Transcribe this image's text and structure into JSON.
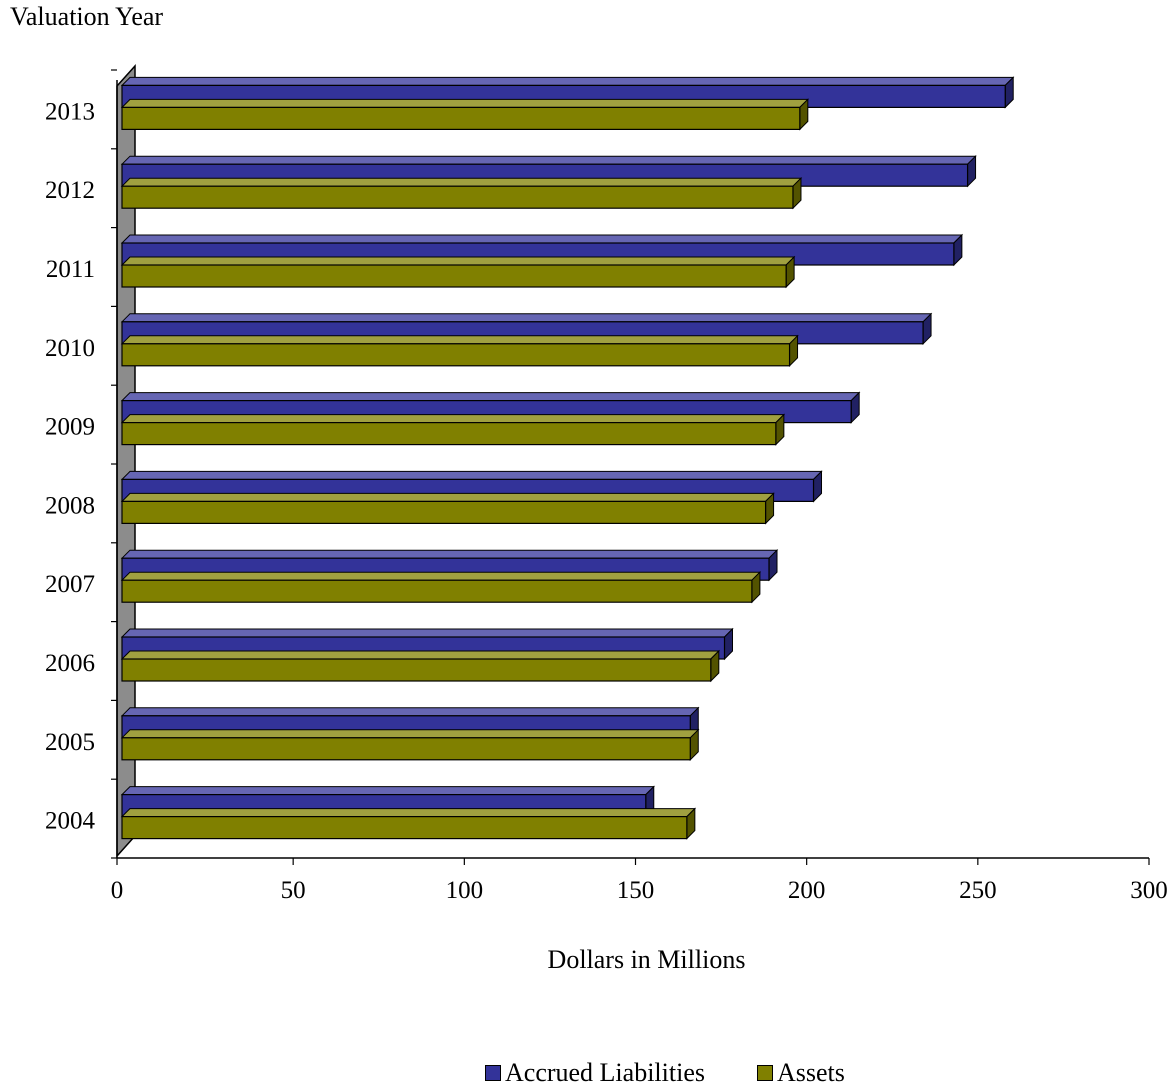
{
  "chart_data": {
    "type": "bar",
    "orientation": "horizontal",
    "style": "3d",
    "ylabel": "Valuation Year",
    "xlabel": "Dollars in Millions",
    "categories": [
      "2004",
      "2005",
      "2006",
      "2007",
      "2008",
      "2009",
      "2010",
      "2011",
      "2012",
      "2013"
    ],
    "series": [
      {
        "name": "Accrued Liabilities",
        "color": "#333399",
        "values": [
          153,
          166,
          176,
          189,
          202,
          213,
          234,
          243,
          247,
          258
        ]
      },
      {
        "name": "Assets",
        "color": "#808000",
        "values": [
          165,
          166,
          172,
          184,
          188,
          191,
          195,
          194,
          196,
          198
        ]
      }
    ],
    "xlim": [
      0,
      300
    ],
    "xticks": [
      "0",
      "50",
      "100",
      "150",
      "200",
      "250",
      "300"
    ],
    "legend_position": "bottom-right",
    "grid": false
  }
}
